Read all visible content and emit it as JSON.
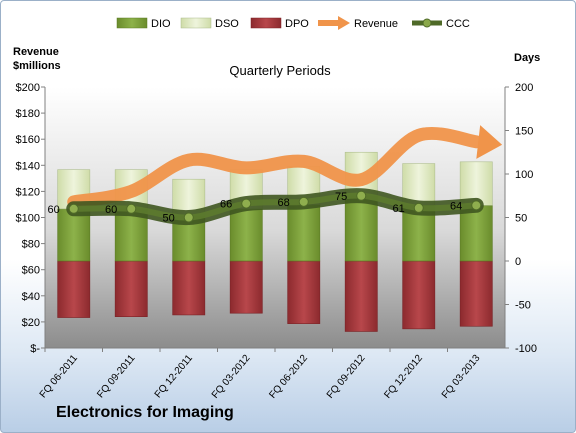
{
  "chart_data": {
    "type": "bar",
    "title": "Quarterly Periods",
    "company": "Electronics for Imaging",
    "left_axis_label": "Revenue $millions",
    "right_axis_label": "Days",
    "categories": [
      "FQ 06-2011",
      "FQ 09-2011",
      "FQ 12-2011",
      "FQ 03-2012",
      "FQ 06-2012",
      "FQ 09-2012",
      "FQ 12-2012",
      "FQ 03-2013"
    ],
    "left_ticks": [
      "$200",
      "$180",
      "$160",
      "$140",
      "$120",
      "$100",
      "$80",
      "$60",
      "$40",
      "$20",
      "$-"
    ],
    "right_ticks": [
      "200",
      "150",
      "100",
      "50",
      "0",
      "-50",
      "-100"
    ],
    "ylim_left": [
      0,
      200
    ],
    "ylim_right": [
      -100,
      200
    ],
    "series": [
      {
        "name": "DIO",
        "type": "bar",
        "color": "#7fa33c",
        "values": [
          60,
          60,
          52,
          60,
          65,
          75,
          64,
          64
        ]
      },
      {
        "name": "DSO",
        "type": "bar",
        "color": "#dfeac6",
        "values": [
          45,
          45,
          42,
          45,
          44,
          50,
          48,
          50
        ]
      },
      {
        "name": "DPO",
        "type": "bar",
        "color": "#a8383c",
        "values": [
          -65,
          -64,
          -62,
          -60,
          -72,
          -81,
          -78,
          -75
        ]
      },
      {
        "name": "Revenue",
        "type": "line",
        "color": "#f0944a",
        "values": [
          112,
          120,
          144,
          138,
          143,
          129,
          163,
          158
        ]
      },
      {
        "name": "CCC",
        "type": "line",
        "color": "#4f6a28",
        "values": [
          60,
          60,
          50,
          66,
          68,
          75,
          61,
          64
        ],
        "labels": [
          "60",
          "60",
          "50",
          "66",
          "68",
          "75",
          "61",
          "64"
        ]
      }
    ],
    "legend_position": "top"
  }
}
